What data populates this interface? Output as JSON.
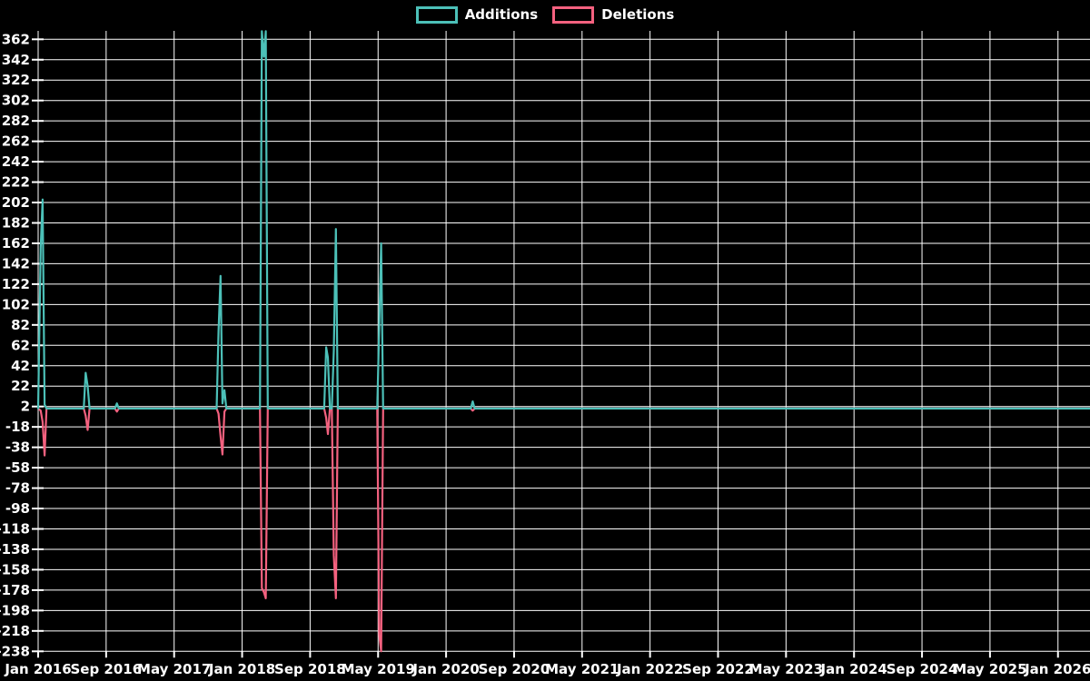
{
  "legend": {
    "items": [
      {
        "id": "additions",
        "label": "Additions",
        "color": "#4cc0b8"
      },
      {
        "id": "deletions",
        "label": "Deletions",
        "color": "#f4617f"
      }
    ]
  },
  "chart_data": {
    "type": "line",
    "title": "",
    "background": "#000000",
    "grid": {
      "show": true,
      "color": "#ffffff"
    },
    "legend_position": "top-center",
    "x_axis": {
      "start": "Jan 2016",
      "end": "Jan 2026",
      "months_per_gridline": 8,
      "labels": [
        "Jan 2016",
        "Sep 2016",
        "May 2017",
        "Jan 2018",
        "Sep 2018",
        "May 2019",
        "Jan 2020",
        "Sep 2020",
        "May 2021",
        "Jan 2022",
        "Sep 2022",
        "May 2023",
        "Jan 2024",
        "Sep 2024",
        "May 2025",
        "Jan 2026"
      ]
    },
    "y_axis": {
      "min": -238,
      "max": 362,
      "step": 20,
      "ticks": [
        362,
        342,
        322,
        302,
        282,
        262,
        242,
        222,
        202,
        182,
        162,
        142,
        122,
        102,
        82,
        62,
        42,
        22,
        2,
        -18,
        -38,
        -58,
        -78,
        -98,
        -118,
        -138,
        -158,
        -178,
        -198,
        -218,
        -238
      ]
    },
    "baseline_value": 0,
    "clip_note": "Additions spike in Mar 2018 exceeds the y-axis max and is clipped flat at the plot top; May 2019 deletions reach the -238 bottom line",
    "series": [
      {
        "name": "Deletions",
        "color": "#f4617f",
        "points": [
          {
            "date": "2016-01-10",
            "value": -2
          },
          {
            "date": "2016-01-17",
            "value": -13
          },
          {
            "date": "2016-01-24",
            "value": -46
          },
          {
            "date": "2016-06-19",
            "value": -7
          },
          {
            "date": "2016-06-26",
            "value": -21
          },
          {
            "date": "2016-10-09",
            "value": -3
          },
          {
            "date": "2017-10-08",
            "value": -5
          },
          {
            "date": "2017-10-15",
            "value": -27
          },
          {
            "date": "2017-10-22",
            "value": -45
          },
          {
            "date": "2017-10-29",
            "value": -3
          },
          {
            "date": "2018-03-11",
            "value": -176
          },
          {
            "date": "2018-03-18",
            "value": -180
          },
          {
            "date": "2018-03-25",
            "value": -186
          },
          {
            "date": "2018-10-28",
            "value": -9
          },
          {
            "date": "2018-11-04",
            "value": -25
          },
          {
            "date": "2018-11-25",
            "value": -144
          },
          {
            "date": "2018-12-02",
            "value": -186
          },
          {
            "date": "2019-05-05",
            "value": -222
          },
          {
            "date": "2019-05-12",
            "value": -238
          },
          {
            "date": "2020-04-05",
            "value": -2
          }
        ]
      },
      {
        "name": "Additions",
        "color": "#4cc0b8",
        "points": [
          {
            "date": "2016-01-10",
            "value": 158
          },
          {
            "date": "2016-01-17",
            "value": 205
          },
          {
            "date": "2016-01-24",
            "value": 4
          },
          {
            "date": "2016-06-19",
            "value": 35
          },
          {
            "date": "2016-06-26",
            "value": 22
          },
          {
            "date": "2016-10-09",
            "value": 5
          },
          {
            "date": "2017-10-08",
            "value": 76
          },
          {
            "date": "2017-10-15",
            "value": 130
          },
          {
            "date": "2017-10-22",
            "value": 5
          },
          {
            "date": "2017-10-29",
            "value": 18
          },
          {
            "date": "2018-03-11",
            "value": 371
          },
          {
            "date": "2018-03-18",
            "value": 345
          },
          {
            "date": "2018-03-25",
            "value": 373
          },
          {
            "date": "2018-10-28",
            "value": 60
          },
          {
            "date": "2018-11-04",
            "value": 50
          },
          {
            "date": "2018-11-25",
            "value": 57
          },
          {
            "date": "2018-12-02",
            "value": 176
          },
          {
            "date": "2019-05-05",
            "value": 81
          },
          {
            "date": "2019-05-12",
            "value": 162
          },
          {
            "date": "2020-04-05",
            "value": 7
          }
        ]
      }
    ]
  }
}
